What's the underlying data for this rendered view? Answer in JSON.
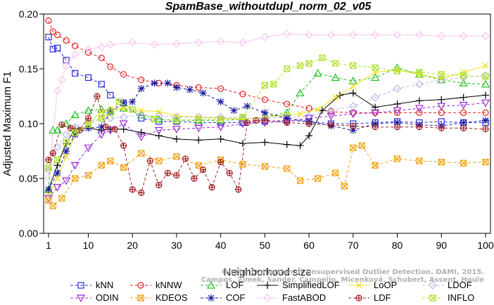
{
  "chart_data": {
    "type": "line",
    "title": "SpamBase_withoutdupl_norm_02_v05",
    "xlabel": "Neighborhood size",
    "ylabel": "Adjusted Maximum F1",
    "xlim": [
      1,
      100
    ],
    "ylim": [
      0,
      0.2
    ],
    "x_ticks": [
      1,
      10,
      20,
      30,
      40,
      50,
      60,
      70,
      80,
      90,
      100
    ],
    "y_ticks": [
      "0.00",
      "0.05",
      "0.10",
      "0.15",
      "0.20"
    ],
    "grid": false,
    "legend_position": "bottom",
    "credit_lines": [
      "Campos, Zimek, Sander, Campello, Micenková, Schubert, Assent, Houle",
      "On the Evaluation of Unsupervised Outlier Detection. DAMI, 2015."
    ],
    "series": [
      {
        "name": "kNN",
        "color": "#2a2ad8",
        "marker": "square",
        "dash": "4,3",
        "x": [
          1,
          2,
          3,
          5,
          7,
          10,
          13,
          15,
          18,
          22,
          26,
          30,
          35,
          40,
          45,
          50,
          55,
          60,
          65,
          70,
          75,
          80,
          85,
          90,
          95,
          100
        ],
        "y": [
          0.179,
          0.168,
          0.169,
          0.158,
          0.146,
          0.142,
          0.136,
          0.126,
          0.119,
          0.105,
          0.102,
          0.102,
          0.101,
          0.101,
          0.101,
          0.102,
          0.103,
          0.102,
          0.1,
          0.1,
          0.101,
          0.102,
          0.101,
          0.102,
          0.101,
          0.101
        ]
      },
      {
        "name": "kNNW",
        "color": "#e02020",
        "marker": "circle",
        "dash": "4,3",
        "x": [
          1,
          2,
          3,
          5,
          7,
          10,
          13,
          15,
          18,
          22,
          26,
          30,
          35,
          40,
          45,
          50,
          55,
          60,
          65,
          70,
          75,
          80,
          85,
          90,
          95,
          100
        ],
        "y": [
          0.194,
          0.184,
          0.181,
          0.176,
          0.171,
          0.165,
          0.16,
          0.152,
          0.145,
          0.14,
          0.137,
          0.135,
          0.133,
          0.132,
          0.127,
          0.122,
          0.118,
          0.114,
          0.111,
          0.11,
          0.11,
          0.11,
          0.11,
          0.11,
          0.11,
          0.11
        ]
      },
      {
        "name": "LOF",
        "color": "#20c020",
        "marker": "triangle",
        "dash": "4,3",
        "x": [
          1,
          2,
          3,
          5,
          7,
          10,
          13,
          15,
          18,
          22,
          26,
          30,
          35,
          40,
          45,
          50,
          55,
          58,
          62,
          66,
          70,
          75,
          80,
          85,
          90,
          95,
          100
        ],
        "y": [
          0.04,
          0.094,
          0.094,
          0.1,
          0.108,
          0.112,
          0.113,
          0.112,
          0.114,
          0.108,
          0.104,
          0.103,
          0.103,
          0.103,
          0.104,
          0.106,
          0.11,
          0.128,
          0.146,
          0.142,
          0.139,
          0.142,
          0.151,
          0.145,
          0.14,
          0.137,
          0.136
        ]
      },
      {
        "name": "SimplifiedLOF",
        "color": "#000000",
        "marker": "plus",
        "dash": "",
        "x": [
          1,
          3,
          5,
          7,
          10,
          13,
          15,
          18,
          22,
          26,
          30,
          35,
          40,
          45,
          50,
          55,
          58,
          60,
          63,
          67,
          70,
          75,
          80,
          85,
          90,
          95,
          100
        ],
        "y": [
          0.04,
          0.062,
          0.082,
          0.095,
          0.096,
          0.094,
          0.095,
          0.095,
          0.092,
          0.089,
          0.086,
          0.085,
          0.086,
          0.082,
          0.083,
          0.081,
          0.08,
          0.089,
          0.112,
          0.126,
          0.128,
          0.115,
          0.118,
          0.121,
          0.122,
          0.124,
          0.126
        ]
      },
      {
        "name": "LoOP",
        "color": "#f0e010",
        "marker": "x",
        "dash": "",
        "x": [
          1,
          3,
          5,
          7,
          10,
          13,
          15,
          18,
          22,
          26,
          30,
          35,
          40,
          45,
          50,
          55,
          58,
          62,
          66,
          70,
          75,
          80,
          85,
          90,
          95,
          100
        ],
        "y": [
          0.035,
          0.05,
          0.07,
          0.09,
          0.1,
          0.111,
          0.113,
          0.114,
          0.112,
          0.111,
          0.107,
          0.106,
          0.105,
          0.104,
          0.106,
          0.108,
          0.109,
          0.113,
          0.124,
          0.134,
          0.147,
          0.149,
          0.145,
          0.141,
          0.147,
          0.153
        ]
      },
      {
        "name": "LDOF",
        "color": "#b8b8e8",
        "marker": "diamond",
        "dash": "4,3",
        "x": [
          1,
          3,
          5,
          7,
          10,
          13,
          15,
          18,
          22,
          26,
          30,
          35,
          40,
          45,
          50,
          55,
          60,
          65,
          70,
          75,
          80,
          85,
          90,
          95,
          100
        ],
        "y": [
          0.058,
          0.079,
          0.09,
          0.097,
          0.102,
          0.104,
          0.105,
          0.106,
          0.108,
          0.107,
          0.106,
          0.106,
          0.106,
          0.105,
          0.105,
          0.106,
          0.107,
          0.112,
          0.116,
          0.124,
          0.132,
          0.136,
          0.14,
          0.142,
          0.144
        ]
      },
      {
        "name": "ODIN",
        "color": "#9a2ad8",
        "marker": "triangle-down",
        "dash": "4,3",
        "x": [
          1,
          3,
          5,
          7,
          10,
          13,
          15,
          18,
          22,
          26,
          30,
          35,
          40,
          45,
          50,
          55,
          60,
          65,
          70,
          75,
          80,
          85,
          90,
          95,
          100
        ],
        "y": [
          0.032,
          0.042,
          0.048,
          0.062,
          0.078,
          0.09,
          0.094,
          0.1,
          0.088,
          0.094,
          0.095,
          0.096,
          0.097,
          0.1,
          0.101,
          0.102,
          0.105,
          0.107,
          0.109,
          0.11,
          0.112,
          0.114,
          0.116,
          0.117,
          0.119
        ]
      },
      {
        "name": "KDEOS",
        "color": "#f0a010",
        "marker": "square-x",
        "dash": "4,3",
        "x": [
          1,
          2,
          4,
          7,
          10,
          13,
          15,
          18,
          22,
          26,
          30,
          35,
          40,
          45,
          50,
          55,
          58,
          62,
          66,
          68,
          70,
          72,
          75,
          80,
          85,
          90,
          95,
          100
        ],
        "y": [
          0.03,
          0.025,
          0.032,
          0.05,
          0.053,
          0.062,
          0.066,
          0.06,
          0.073,
          0.066,
          0.07,
          0.062,
          0.067,
          0.063,
          0.061,
          0.059,
          0.048,
          0.05,
          0.055,
          0.043,
          0.078,
          0.08,
          0.062,
          0.068,
          0.066,
          0.065,
          0.064,
          0.065
        ]
      },
      {
        "name": "COF",
        "color": "#1a1aa0",
        "marker": "star",
        "dash": "4,3",
        "x": [
          1,
          3,
          5,
          7,
          10,
          13,
          15,
          18,
          20,
          22,
          25,
          28,
          30,
          33,
          36,
          40,
          43,
          46,
          50,
          55,
          60,
          65,
          70,
          75,
          80,
          85,
          90,
          95,
          100
        ],
        "y": [
          0.04,
          0.055,
          0.075,
          0.09,
          0.096,
          0.097,
          0.111,
          0.119,
          0.12,
          0.132,
          0.137,
          0.137,
          0.133,
          0.131,
          0.128,
          0.12,
          0.112,
          0.116,
          0.11,
          0.105,
          0.102,
          0.098,
          0.094,
          0.1,
          0.101,
          0.099,
          0.098,
          0.101,
          0.103
        ]
      },
      {
        "name": "FastABOD",
        "color": "#f8c8f0",
        "marker": "diamond",
        "dash": "",
        "x": [
          1,
          3,
          4,
          5,
          7,
          10,
          13,
          15,
          20,
          25,
          30,
          35,
          40,
          45,
          50,
          55,
          60,
          65,
          70,
          75,
          80,
          85,
          90,
          95,
          100
        ],
        "y": [
          0.05,
          0.13,
          0.14,
          0.153,
          0.163,
          0.168,
          0.17,
          0.172,
          0.174,
          0.172,
          0.173,
          0.174,
          0.175,
          0.174,
          0.179,
          0.182,
          0.181,
          0.181,
          0.181,
          0.181,
          0.181,
          0.181,
          0.18,
          0.18,
          0.18
        ]
      },
      {
        "name": "LDF",
        "color": "#a02020",
        "marker": "circle-plus",
        "dash": "4,3",
        "x": [
          1,
          2,
          4,
          6,
          8,
          10,
          12,
          14,
          16,
          18,
          20,
          22,
          24,
          26,
          28,
          30,
          32,
          34,
          36,
          38,
          40,
          42,
          44,
          46,
          48,
          50,
          55,
          60,
          65,
          70,
          75,
          80,
          85,
          90,
          95,
          100
        ],
        "y": [
          0.067,
          0.073,
          0.099,
          0.096,
          0.094,
          0.105,
          0.125,
          0.097,
          0.095,
          0.08,
          0.04,
          0.037,
          0.066,
          0.044,
          0.055,
          0.053,
          0.068,
          0.05,
          0.058,
          0.042,
          0.065,
          0.055,
          0.04,
          0.101,
          0.103,
          0.103,
          0.101,
          0.1,
          0.099,
          0.098,
          0.097,
          0.097,
          0.097,
          0.096,
          0.096,
          0.095
        ]
      },
      {
        "name": "INFLO",
        "color": "#b0e030",
        "marker": "square-x",
        "dash": "4,3",
        "x": [
          1,
          3,
          5,
          7,
          10,
          13,
          15,
          17,
          20,
          25,
          30,
          35,
          40,
          45,
          50,
          52,
          55,
          58,
          60,
          63,
          66,
          70,
          75,
          80,
          85,
          90,
          95,
          100
        ],
        "y": [
          0.06,
          0.067,
          0.083,
          0.092,
          0.099,
          0.105,
          0.11,
          0.12,
          0.113,
          0.104,
          0.103,
          0.104,
          0.104,
          0.106,
          0.135,
          0.136,
          0.15,
          0.153,
          0.155,
          0.16,
          0.155,
          0.153,
          0.151,
          0.148,
          0.147,
          0.145,
          0.144,
          0.143
        ]
      }
    ]
  }
}
